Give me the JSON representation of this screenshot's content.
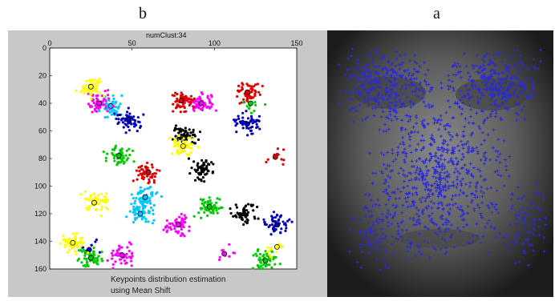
{
  "figure": {
    "label_b": "b",
    "label_a": "a"
  },
  "left_plot": {
    "title": "numClust:34",
    "caption_line1": "Keypoints distribution estimation",
    "caption_line2": "using Mean Shift"
  },
  "chart_data": [
    {
      "type": "scatter",
      "title": "numClust:34",
      "xlim": [
        0,
        150
      ],
      "ylim": [
        0,
        160
      ],
      "y_inverted": true,
      "x_ticks": [
        0,
        50,
        100,
        150
      ],
      "y_ticks": [
        0,
        20,
        40,
        60,
        80,
        100,
        120,
        140,
        160
      ],
      "grid": false,
      "legend": "none",
      "series": [
        {
          "color": "#00c8ff",
          "values": [
            {
              "x": 37,
              "y": 42
            },
            {
              "x": 58,
              "y": 108
            },
            {
              "x": 55,
              "y": 120
            }
          ]
        },
        {
          "color": "#ff00ff",
          "values": [
            {
              "x": 30,
              "y": 40
            },
            {
              "x": 92,
              "y": 40
            },
            {
              "x": 78,
              "y": 128
            },
            {
              "x": 44,
              "y": 150
            },
            {
              "x": 106,
              "y": 149
            }
          ]
        },
        {
          "color": "#e00000",
          "values": [
            {
              "x": 80,
              "y": 38
            },
            {
              "x": 120,
              "y": 32
            },
            {
              "x": 60,
              "y": 90
            },
            {
              "x": 137,
              "y": 79
            }
          ]
        },
        {
          "color": "#0000c0",
          "values": [
            {
              "x": 48,
              "y": 52
            },
            {
              "x": 120,
              "y": 55
            },
            {
              "x": 138,
              "y": 128
            },
            {
              "x": 24,
              "y": 146
            }
          ]
        },
        {
          "color": "#00cc00",
          "values": [
            {
              "x": 42,
              "y": 78
            },
            {
              "x": 97,
              "y": 115
            },
            {
              "x": 25,
              "y": 152
            },
            {
              "x": 131,
              "y": 154
            },
            {
              "x": 122,
              "y": 40
            }
          ]
        },
        {
          "color": "#000000",
          "values": [
            {
              "x": 93,
              "y": 88
            },
            {
              "x": 118,
              "y": 120
            },
            {
              "x": 82,
              "y": 65
            }
          ]
        },
        {
          "color": "#ffff00",
          "values": [
            {
              "x": 81,
              "y": 71
            },
            {
              "x": 25,
              "y": 28
            },
            {
              "x": 27,
              "y": 112
            },
            {
              "x": 14,
              "y": 141
            },
            {
              "x": 138,
              "y": 144
            }
          ]
        }
      ]
    }
  ]
}
